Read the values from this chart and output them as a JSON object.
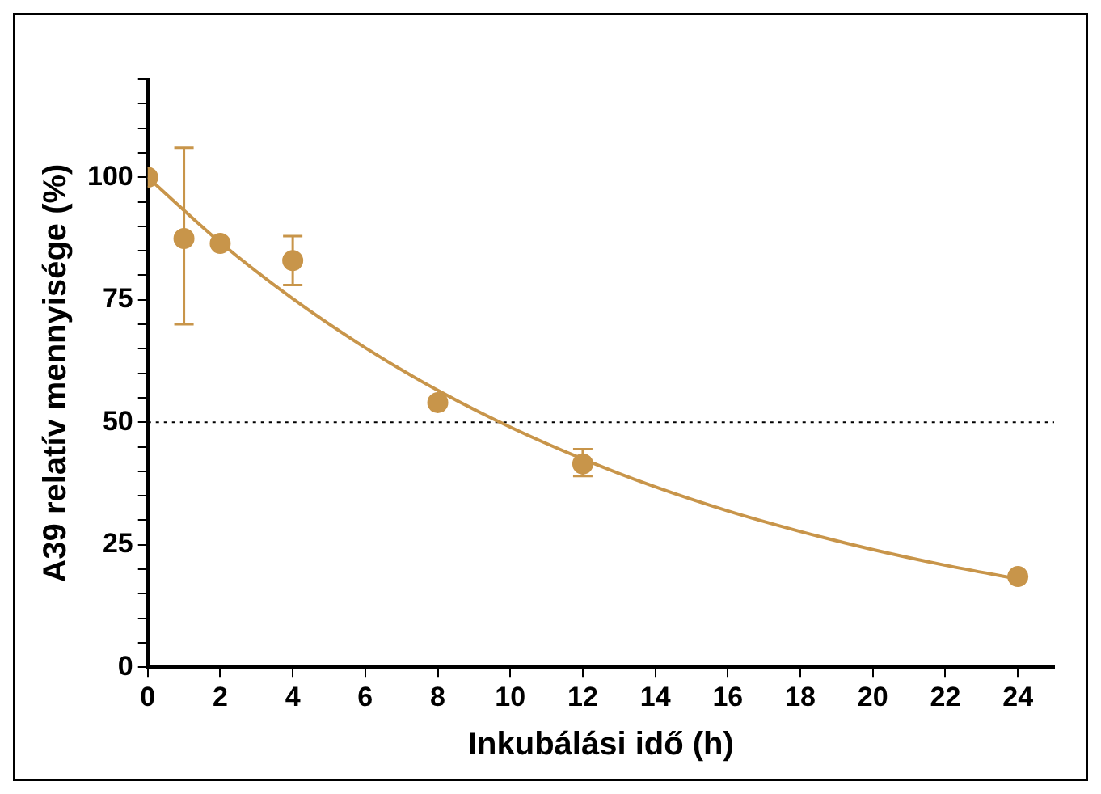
{
  "chart_data": {
    "type": "scatter",
    "xlabel": "Inkubálási idő (h)",
    "ylabel": "A39 relatív mennyisége (%)",
    "xlim": [
      0,
      25
    ],
    "xticks": [
      0,
      2,
      4,
      6,
      8,
      10,
      12,
      14,
      16,
      18,
      20,
      22,
      24
    ],
    "ylim": [
      0,
      120
    ],
    "yticks": [
      0,
      {
        "value": 5,
        "label": null
      },
      {
        "value": 10,
        "label": null
      },
      {
        "value": 15,
        "label": null
      },
      {
        "value": 20,
        "label": null
      },
      25,
      {
        "value": 30,
        "label": null
      },
      {
        "value": 35,
        "label": null
      },
      {
        "value": 40,
        "label": null
      },
      {
        "value": 45,
        "label": null
      },
      50,
      {
        "value": 55,
        "label": null
      },
      {
        "value": 60,
        "label": null
      },
      {
        "value": 65,
        "label": null
      },
      {
        "value": 70,
        "label": null
      },
      75,
      {
        "value": 80,
        "label": null
      },
      {
        "value": 85,
        "label": null
      },
      {
        "value": 90,
        "label": null
      },
      {
        "value": 95,
        "label": null
      },
      100,
      {
        "value": 105,
        "label": null
      },
      {
        "value": 110,
        "label": null
      },
      {
        "value": 115,
        "label": null
      },
      {
        "value": 120,
        "label": null
      }
    ],
    "grid": false,
    "legend": false,
    "series": [
      {
        "marker": "circle",
        "color": "#c8954a",
        "x": [
          0,
          1,
          2,
          4,
          8,
          12,
          24
        ],
        "values": [
          100,
          87.5,
          86.5,
          83,
          54,
          41.5,
          18.5
        ],
        "errors": [
          null,
          [
            70,
            106
          ],
          null,
          [
            78,
            88
          ],
          null,
          [
            39,
            44.5
          ],
          null
        ]
      },
      {
        "type": "line",
        "color": "#c8954a",
        "x": [
          0,
          2,
          4,
          6,
          8,
          10,
          12,
          14,
          16,
          18,
          20,
          22,
          24
        ],
        "values": [
          100,
          86.7,
          75.2,
          65.2,
          56.5,
          49,
          42.5,
          36.8,
          31.9,
          27.7,
          24,
          20.8,
          18
        ]
      }
    ],
    "ref_lines": [
      {
        "axis": "y",
        "value": 50,
        "line_style": "dotted",
        "color": "#000000"
      }
    ]
  }
}
